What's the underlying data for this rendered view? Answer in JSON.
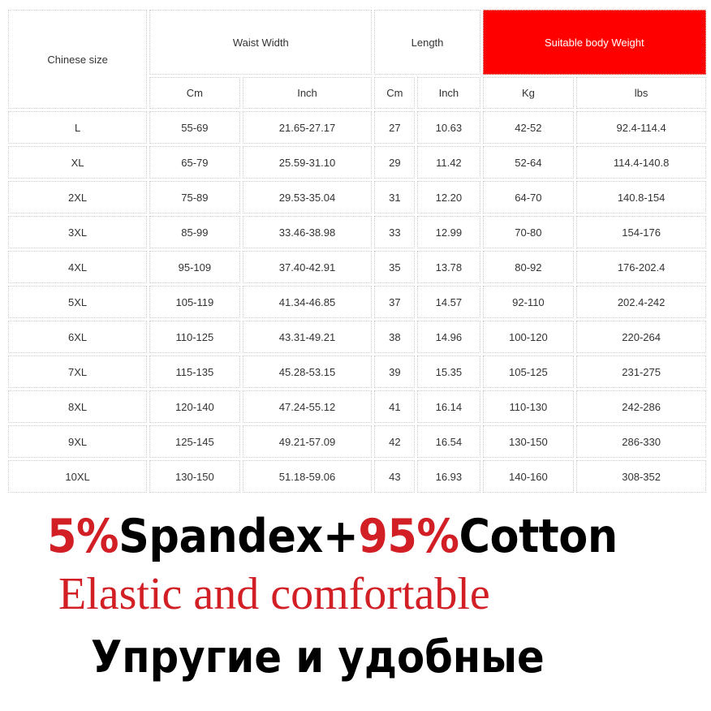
{
  "table": {
    "header": {
      "size_label": "Chinese size",
      "groups": [
        "Waist Width",
        "Length",
        "Suitable body Weight"
      ],
      "units": [
        "Cm",
        "Inch",
        "Cm",
        "Inch",
        "Kg",
        "lbs"
      ]
    },
    "highlight_color": "#ff0000",
    "rows": [
      [
        "L",
        "55-69",
        "21.65-27.17",
        "27",
        "10.63",
        "42-52",
        "92.4-114.4"
      ],
      [
        "XL",
        "65-79",
        "25.59-31.10",
        "29",
        "11.42",
        "52-64",
        "114.4-140.8"
      ],
      [
        "2XL",
        "75-89",
        "29.53-35.04",
        "31",
        "12.20",
        "64-70",
        "140.8-154"
      ],
      [
        "3XL",
        "85-99",
        "33.46-38.98",
        "33",
        "12.99",
        "70-80",
        "154-176"
      ],
      [
        "4XL",
        "95-109",
        "37.40-42.91",
        "35",
        "13.78",
        "80-92",
        "176-202.4"
      ],
      [
        "5XL",
        "105-119",
        "41.34-46.85",
        "37",
        "14.57",
        "92-110",
        "202.4-242"
      ],
      [
        "6XL",
        "110-125",
        "43.31-49.21",
        "38",
        "14.96",
        "100-120",
        "220-264"
      ],
      [
        "7XL",
        "115-135",
        "45.28-53.15",
        "39",
        "15.35",
        "105-125",
        "231-275"
      ],
      [
        "8XL",
        "120-140",
        "47.24-55.12",
        "41",
        "16.14",
        "110-130",
        "242-286"
      ],
      [
        "9XL",
        "125-145",
        "49.21-57.09",
        "42",
        "16.54",
        "130-150",
        "286-330"
      ],
      [
        "10XL",
        "130-150",
        "51.18-59.06",
        "43",
        "16.93",
        "140-160",
        "308-352"
      ]
    ]
  },
  "promo": {
    "line1": {
      "p1": "5%",
      "p2": "Spandex+",
      "p3": "95%",
      "p4": "Cotton"
    },
    "line2": "Elastic and comfortable",
    "line3": "Упругие и удобные",
    "accent_color": "#d21f25"
  }
}
